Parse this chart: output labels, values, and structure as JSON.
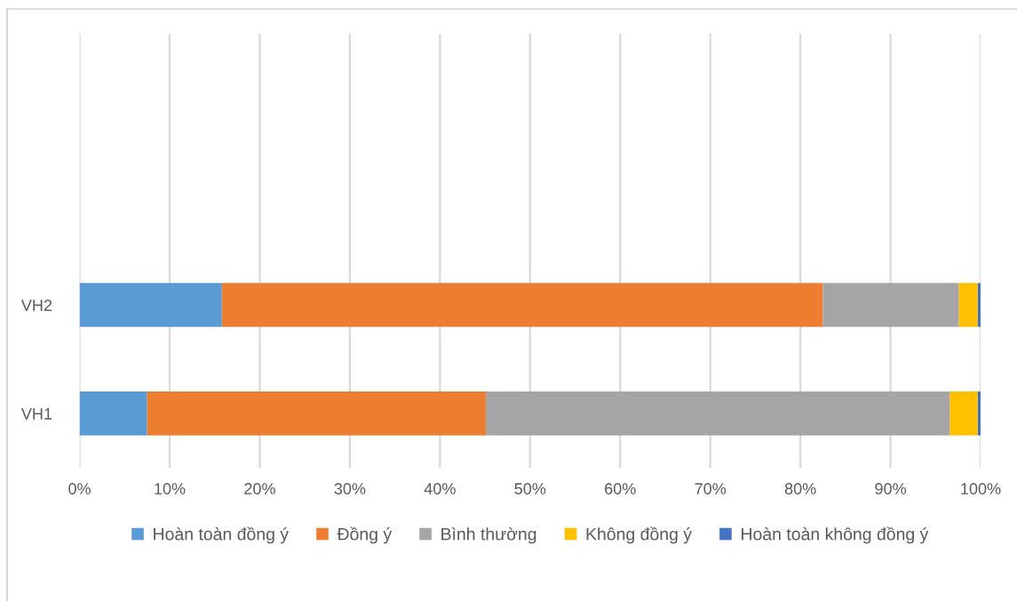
{
  "chart_data": {
    "type": "bar",
    "orientation": "horizontal",
    "stacked": true,
    "categories": [
      null,
      null,
      "VH2",
      "VH1"
    ],
    "series": [
      {
        "name": "Hoàn toàn đồng ý",
        "color": "#5b9bd5",
        "values": [
          null,
          null,
          15.8,
          7.5
        ]
      },
      {
        "name": "Đồng ý",
        "color": "#ed7d31",
        "values": [
          null,
          null,
          66.7,
          37.6
        ]
      },
      {
        "name": "Bình thường",
        "color": "#a5a5a5",
        "values": [
          null,
          null,
          15.1,
          51.5
        ]
      },
      {
        "name": "Không đồng ý",
        "color": "#ffc000",
        "values": [
          null,
          null,
          2.1,
          3.1
        ]
      },
      {
        "name": "Hoàn toàn không đồng ý",
        "color": "#4472c4",
        "values": [
          null,
          null,
          0.3,
          0.3
        ]
      }
    ],
    "xlim": [
      0,
      100
    ],
    "xticks": [
      {
        "value": 0,
        "label": "0%"
      },
      {
        "value": 10,
        "label": "10%"
      },
      {
        "value": 20,
        "label": "20%"
      },
      {
        "value": 30,
        "label": "30%"
      },
      {
        "value": 40,
        "label": "40%"
      },
      {
        "value": 50,
        "label": "50%"
      },
      {
        "value": 60,
        "label": "60%"
      },
      {
        "value": 70,
        "label": "70%"
      },
      {
        "value": 80,
        "label": "80%"
      },
      {
        "value": 90,
        "label": "90%"
      },
      {
        "value": 100,
        "label": "100%"
      }
    ],
    "grid": "x",
    "legend": "bottom"
  }
}
